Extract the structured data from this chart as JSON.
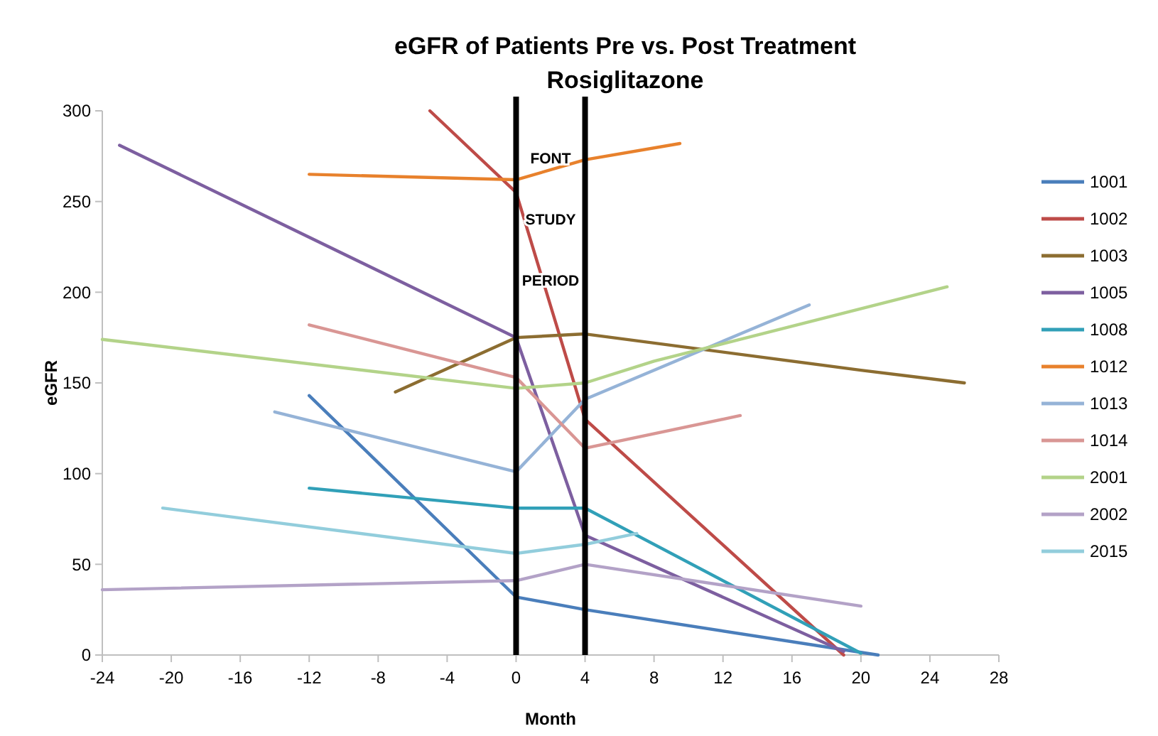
{
  "chart_data": {
    "type": "line",
    "title": "eGFR of Patients Pre vs. Post Treatment\nRosiglitazone",
    "xlabel": "Month",
    "ylabel": "eGFR",
    "xlim": [
      -24,
      28
    ],
    "xticks": [
      -24,
      -20,
      -16,
      -12,
      -8,
      -4,
      0,
      4,
      8,
      12,
      16,
      20,
      24,
      28
    ],
    "ylim": [
      0,
      300
    ],
    "yticks": [
      0,
      50,
      100,
      150,
      200,
      250,
      300
    ],
    "grid": false,
    "legend": "right",
    "marker": "none",
    "line_style": "solid",
    "ref_lines": [
      {
        "axis": "x",
        "value": 0,
        "color": "#000000"
      },
      {
        "axis": "x",
        "value": 4,
        "color": "#000000"
      }
    ],
    "annotations": [
      "FONT",
      "STUDY",
      "PERIOD"
    ],
    "series": [
      {
        "name": "1001",
        "color": "#4a7ebb",
        "x": [
          -12,
          0,
          4,
          21
        ],
        "values": [
          143,
          32,
          25,
          0
        ]
      },
      {
        "name": "1002",
        "color": "#be4b48",
        "x": [
          -5,
          0,
          4,
          19
        ],
        "values": [
          300,
          255,
          130,
          0
        ]
      },
      {
        "name": "1003",
        "color": "#8c6d31",
        "x": [
          -7,
          0,
          4,
          20,
          26
        ],
        "values": [
          145,
          175,
          177,
          157,
          150
        ]
      },
      {
        "name": "1005",
        "color": "#7d5fa0",
        "x": [
          -23,
          0,
          4,
          19
        ],
        "values": [
          281,
          175,
          66,
          2
        ]
      },
      {
        "name": "1008",
        "color": "#31a0b8",
        "x": [
          -12,
          0,
          4,
          20
        ],
        "values": [
          92,
          81,
          81,
          1
        ]
      },
      {
        "name": "1012",
        "color": "#e8812c",
        "x": [
          -12,
          0,
          4,
          9.5
        ],
        "values": [
          265,
          262,
          273,
          282
        ]
      },
      {
        "name": "1013",
        "color": "#95b3d7",
        "x": [
          -14,
          0,
          4,
          17
        ],
        "values": [
          134,
          101,
          141,
          193
        ]
      },
      {
        "name": "1014",
        "color": "#d99694",
        "x": [
          -12,
          0,
          4,
          13
        ],
        "values": [
          182,
          153,
          114,
          132
        ]
      },
      {
        "name": "2001",
        "color": "#b3d389",
        "x": [
          -24,
          0,
          4,
          8,
          25
        ],
        "values": [
          174,
          147,
          150,
          162,
          203
        ]
      },
      {
        "name": "2002",
        "color": "#b3a2c7",
        "x": [
          -24,
          0,
          4,
          20
        ],
        "values": [
          36,
          41,
          50,
          27
        ]
      },
      {
        "name": "2015",
        "color": "#92cddc",
        "x": [
          -20.5,
          0,
          4,
          7
        ],
        "values": [
          81,
          56,
          61,
          67
        ]
      }
    ]
  }
}
